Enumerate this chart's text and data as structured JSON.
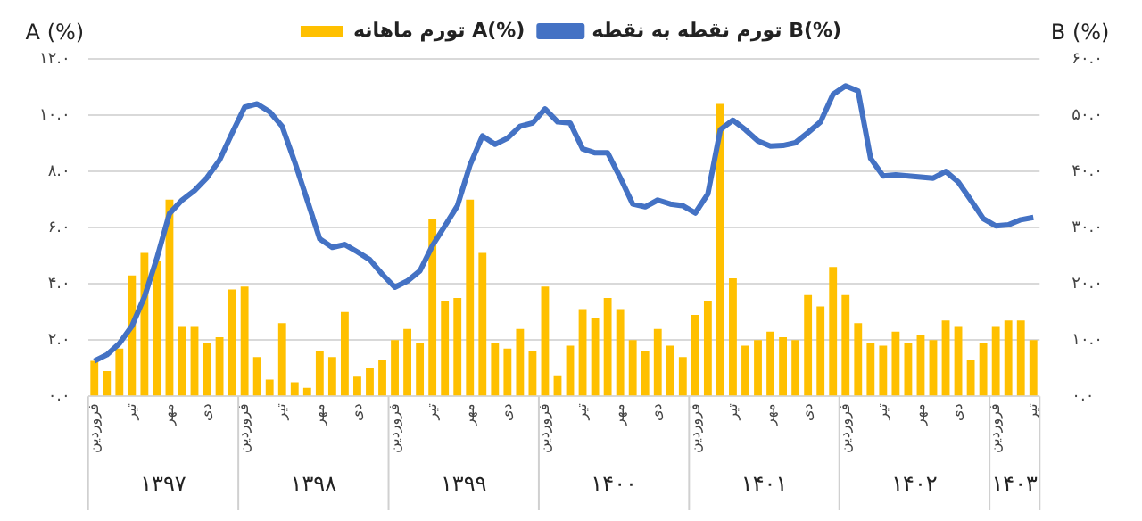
{
  "chart_data": {
    "type": "bar",
    "ylabel": "A (%)",
    "y2label": "B (%)",
    "legend": "top",
    "grid": "y",
    "categories": [
      "فروردین",
      null,
      null,
      "تیر",
      null,
      null,
      "مهر",
      null,
      null,
      "دی",
      null,
      null,
      "فروردین",
      null,
      null,
      "تیر",
      null,
      null,
      "مهر",
      null,
      null,
      "دی",
      null,
      null,
      "فروردین",
      null,
      null,
      "تیر",
      null,
      null,
      "مهر",
      null,
      null,
      "دی",
      null,
      null,
      "فروردین",
      null,
      null,
      "تیر",
      null,
      null,
      "مهر",
      null,
      null,
      "دی",
      null,
      null,
      "فروردین",
      null,
      null,
      "تیر",
      null,
      null,
      "مهر",
      null,
      null,
      "دی",
      null,
      null,
      "فروردین",
      null,
      null,
      "تیر",
      null,
      null,
      "مهر",
      null,
      null,
      "دی",
      null,
      null,
      "فروردین",
      null,
      null,
      "تیر"
    ],
    "annotations": [
      "۱۳۹۷",
      "۱۳۹۸",
      "۱۳۹۹",
      "۱۴۰۰",
      "۱۴۰۱",
      "۱۴۰۲",
      "۱۴۰۳"
    ],
    "ylim": [
      0,
      12
    ],
    "yticks": [
      {
        "value": 0,
        "label": "۰.۰"
      },
      {
        "value": 2,
        "label": "۲.۰"
      },
      {
        "value": 4,
        "label": "۴.۰"
      },
      {
        "value": 6,
        "label": "۶.۰"
      },
      {
        "value": 8,
        "label": "۸.۰"
      },
      {
        "value": 10,
        "label": "۱۰.۰"
      },
      {
        "value": 12,
        "label": "۱۲.۰"
      }
    ],
    "y2lim": [
      0,
      60
    ],
    "y2ticks": [
      {
        "value": 0,
        "label": "۰.۰"
      },
      {
        "value": 10,
        "label": "۱۰.۰"
      },
      {
        "value": 20,
        "label": "۲۰.۰"
      },
      {
        "value": 30,
        "label": "۳۰.۰"
      },
      {
        "value": 40,
        "label": "۴۰.۰"
      },
      {
        "value": 50,
        "label": "۵۰.۰"
      },
      {
        "value": 60,
        "label": "۶۰.۰"
      }
    ],
    "series": [
      {
        "name": "تورم ماهانه A(%)",
        "color": "#ffc000",
        "values": [
          1.26,
          0.9,
          1.7,
          4.3,
          5.1,
          4.8,
          7.0,
          2.5,
          2.5,
          1.9,
          2.1,
          3.8,
          3.9,
          1.4,
          0.6,
          2.6,
          0.5,
          0.3,
          1.6,
          1.4,
          3.0,
          0.7,
          1.0,
          1.3,
          2.0,
          2.4,
          1.9,
          6.3,
          3.4,
          3.5,
          7.0,
          5.1,
          1.9,
          1.7,
          2.4,
          1.6,
          3.9,
          0.75,
          1.8,
          3.1,
          2.8,
          3.5,
          3.1,
          2.0,
          1.6,
          2.4,
          1.8,
          1.4,
          2.9,
          3.4,
          10.4,
          4.2,
          1.8,
          2.0,
          2.3,
          2.1,
          2.0,
          3.6,
          3.2,
          4.6,
          3.6,
          2.6,
          1.9,
          1.8,
          2.3,
          1.9,
          2.2,
          2.0,
          2.7,
          2.5,
          1.3,
          1.9,
          2.5,
          2.7,
          2.7,
          2.0
        ]
      },
      {
        "name": "تورم نقطه به نقطه B(%)",
        "type": "line",
        "axis": "y2",
        "color": "#4472c4",
        "values": [
          6.3,
          7.4,
          9.4,
          12.5,
          17.7,
          24.6,
          32.5,
          34.9,
          36.6,
          38.9,
          42.0,
          46.8,
          51.4,
          52.0,
          50.6,
          48.0,
          41.7,
          34.9,
          28.0,
          26.5,
          27.0,
          25.7,
          24.3,
          21.7,
          19.4,
          20.5,
          22.3,
          26.8,
          30.3,
          33.9,
          41.1,
          46.3,
          44.8,
          45.9,
          48.0,
          48.6,
          51.1,
          48.8,
          48.6,
          44.0,
          43.3,
          43.3,
          38.9,
          34.2,
          33.7,
          34.9,
          34.2,
          33.9,
          32.6,
          36.0,
          47.4,
          49.1,
          47.4,
          45.4,
          44.5,
          44.6,
          45.1,
          46.9,
          48.8,
          53.7,
          55.2,
          54.3,
          42.3,
          39.2,
          39.4,
          39.2,
          39.0,
          38.8,
          40.0,
          38.1,
          34.9,
          31.6,
          30.3,
          30.5,
          31.4,
          31.8
        ]
      }
    ]
  }
}
